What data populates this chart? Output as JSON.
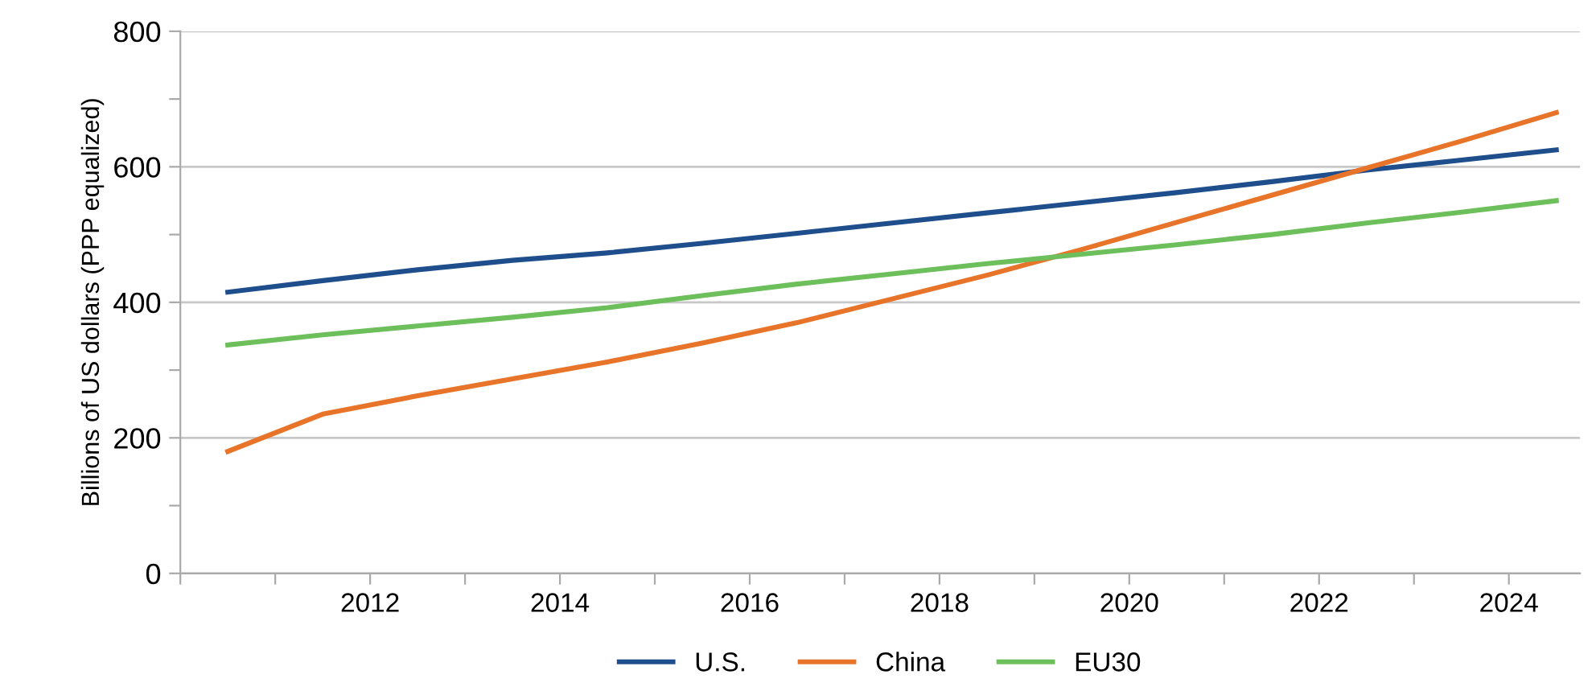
{
  "chart_data": {
    "type": "line",
    "ylabel": "Billions of US dollars (PPP equalized)",
    "x": [
      2010.5,
      2011.5,
      2012.5,
      2013.5,
      2014.5,
      2015.5,
      2016.5,
      2017.5,
      2018.5,
      2019.5,
      2020.5,
      2021.5,
      2022.5,
      2023.5,
      2024.5
    ],
    "series": [
      {
        "name": "U.S.",
        "color": "#1f4e8c",
        "values": [
          415,
          432,
          448,
          462,
          473,
          487,
          502,
          517,
          532,
          547,
          562,
          578,
          595,
          610,
          625
        ]
      },
      {
        "name": "China",
        "color": "#e8742a",
        "values": [
          180,
          235,
          262,
          287,
          312,
          340,
          370,
          405,
          440,
          478,
          518,
          558,
          598,
          638,
          680
        ]
      },
      {
        "name": "EU30",
        "color": "#6cbf5a",
        "values": [
          337,
          352,
          365,
          378,
          392,
          410,
          427,
          442,
          457,
          471,
          485,
          500,
          517,
          533,
          550
        ]
      }
    ],
    "xlim": [
      2010,
      2024.75
    ],
    "xticks": [
      {
        "value": 2010,
        "label": null
      },
      {
        "value": 2011,
        "label": null
      },
      2012,
      {
        "value": 2013,
        "label": null
      },
      2014,
      {
        "value": 2015,
        "label": null
      },
      2016,
      {
        "value": 2017,
        "label": null
      },
      2018,
      {
        "value": 2019,
        "label": null
      },
      2020,
      {
        "value": 2021,
        "label": null
      },
      2022,
      {
        "value": 2023,
        "label": null
      },
      2024
    ],
    "ylim": [
      0,
      800
    ],
    "yticks": [
      0,
      {
        "value": 100,
        "label": null
      },
      200,
      {
        "value": 300,
        "label": null
      },
      400,
      {
        "value": 500,
        "label": null
      },
      600,
      {
        "value": 700,
        "label": null
      },
      800
    ],
    "grid": "y",
    "legend": "bottom",
    "marker": "none",
    "line_style": "solid"
  }
}
